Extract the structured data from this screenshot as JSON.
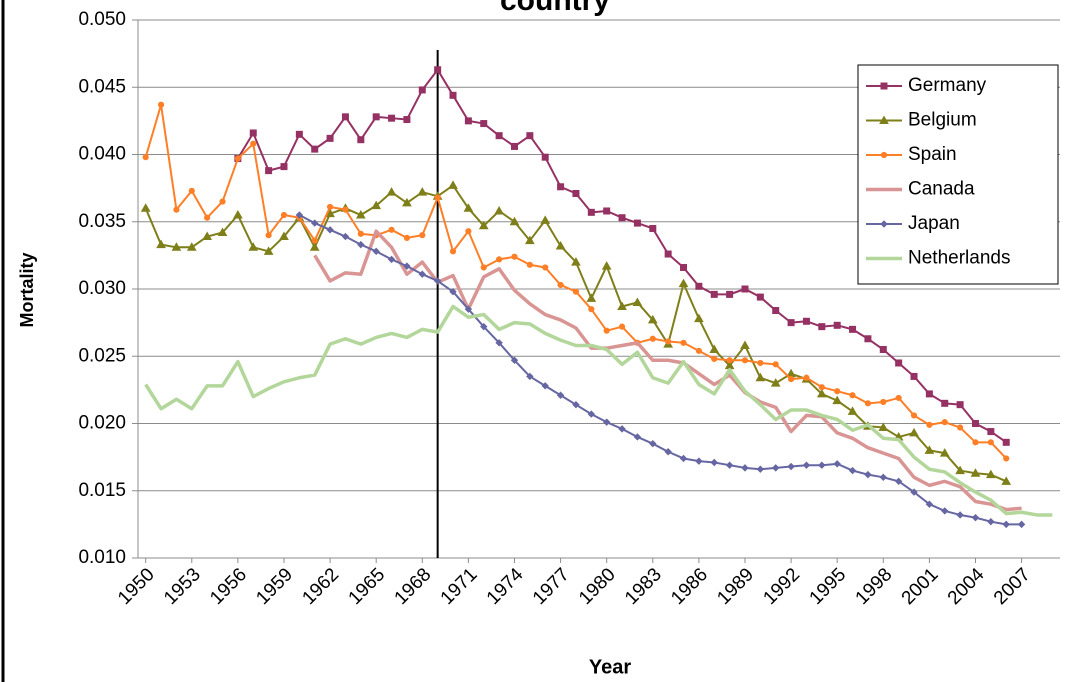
{
  "chart_data": {
    "type": "line",
    "title": "country",
    "x_label": "Year",
    "y_label": "Mortality",
    "x": [
      1950,
      1951,
      1952,
      1953,
      1954,
      1955,
      1956,
      1957,
      1958,
      1959,
      1960,
      1961,
      1962,
      1963,
      1964,
      1965,
      1966,
      1967,
      1968,
      1969,
      1970,
      1971,
      1972,
      1973,
      1974,
      1975,
      1976,
      1977,
      1978,
      1979,
      1980,
      1981,
      1982,
      1983,
      1984,
      1985,
      1986,
      1987,
      1988,
      1989,
      1990,
      1991,
      1992,
      1993,
      1994,
      1995,
      1996,
      1997,
      1998,
      1999,
      2000,
      2001,
      2002,
      2003,
      2004,
      2005,
      2006,
      2007,
      2008,
      2009
    ],
    "xlim": [
      1949.5,
      2009.5
    ],
    "xticks": [
      1950,
      1953,
      1956,
      1959,
      1962,
      1965,
      1968,
      1971,
      1974,
      1977,
      1980,
      1983,
      1986,
      1989,
      1992,
      1995,
      1998,
      2001,
      2004,
      2007
    ],
    "ylim": [
      0.01,
      0.05
    ],
    "yticks": [
      {
        "value": 0.01,
        "label": "0.010"
      },
      {
        "value": 0.015,
        "label": "0.015"
      },
      {
        "value": 0.02,
        "label": "0.020"
      },
      {
        "value": 0.025,
        "label": "0.025"
      },
      {
        "value": 0.03,
        "label": "0.030"
      },
      {
        "value": 0.035,
        "label": "0.035"
      },
      {
        "value": 0.04,
        "label": "0.040"
      },
      {
        "value": 0.045,
        "label": "0.045"
      },
      {
        "value": 0.05,
        "label": "0.050"
      }
    ],
    "grid": true,
    "vline": 1969,
    "legend": "upper right",
    "series": [
      {
        "name": "Germany",
        "color": "#953163",
        "marker": "square",
        "values": [
          null,
          null,
          null,
          null,
          null,
          null,
          0.0397,
          0.0416,
          0.0388,
          0.0391,
          0.0415,
          0.0404,
          0.0412,
          0.0428,
          0.0411,
          0.0428,
          0.0427,
          0.0426,
          0.0448,
          0.0463,
          0.0444,
          0.0425,
          0.0423,
          0.0414,
          0.0406,
          0.0414,
          0.0398,
          0.0376,
          0.0371,
          0.0357,
          0.0358,
          0.0353,
          0.0349,
          0.0345,
          0.0326,
          0.0316,
          0.0302,
          0.0296,
          0.0296,
          0.03,
          0.0294,
          0.0284,
          0.0275,
          0.0276,
          0.0272,
          0.0273,
          0.027,
          0.0263,
          0.0255,
          0.0245,
          0.0235,
          0.0222,
          0.0215,
          0.0214,
          0.02,
          0.0194,
          0.0186,
          null,
          null,
          null
        ]
      },
      {
        "name": "Belgium",
        "color": "#7f7f1a",
        "marker": "triangle",
        "values": [
          0.036,
          0.0333,
          0.0331,
          0.0331,
          0.0339,
          0.0342,
          0.0355,
          0.0331,
          0.0328,
          0.0339,
          0.0353,
          0.0331,
          0.0356,
          0.036,
          0.0355,
          0.0362,
          0.0372,
          0.0364,
          0.0372,
          0.0369,
          0.0377,
          0.036,
          0.0347,
          0.0358,
          0.035,
          0.0336,
          0.0351,
          0.0332,
          0.032,
          0.0293,
          0.0317,
          0.0287,
          0.029,
          0.0277,
          0.0259,
          0.0304,
          0.0278,
          0.0255,
          0.0243,
          0.0258,
          0.0234,
          0.023,
          0.0237,
          0.0233,
          0.0222,
          0.0217,
          0.0209,
          0.0198,
          0.0197,
          0.019,
          0.0193,
          0.018,
          0.0178,
          0.0165,
          0.0163,
          0.0162,
          0.0157,
          null,
          null,
          null
        ]
      },
      {
        "name": "Spain",
        "color": "#ff7f27",
        "marker": "circle",
        "values": [
          0.0398,
          0.0437,
          0.0359,
          0.0373,
          0.0353,
          0.0365,
          0.0397,
          0.0408,
          0.034,
          0.0355,
          0.0353,
          0.0336,
          0.0361,
          0.0359,
          0.0341,
          0.034,
          0.0344,
          0.0338,
          0.034,
          0.0368,
          0.0328,
          0.0343,
          0.0316,
          0.0322,
          0.0324,
          0.0318,
          0.0316,
          0.0303,
          0.0298,
          0.0285,
          0.0269,
          0.0272,
          0.026,
          0.0263,
          0.0261,
          0.026,
          0.0254,
          0.0248,
          0.0247,
          0.0247,
          0.0245,
          0.0244,
          0.0233,
          0.0234,
          0.0227,
          0.0224,
          0.0221,
          0.0215,
          0.0216,
          0.0219,
          0.0206,
          0.0199,
          0.0201,
          0.0197,
          0.0186,
          0.0186,
          0.0174,
          null,
          null,
          null
        ]
      },
      {
        "name": "Canada",
        "color": "#d99594",
        "marker": "none",
        "values": [
          null,
          null,
          null,
          null,
          null,
          null,
          null,
          null,
          null,
          null,
          null,
          0.0325,
          0.0306,
          0.0312,
          0.0311,
          0.0343,
          0.0331,
          0.0311,
          0.032,
          0.0305,
          0.031,
          0.0285,
          0.0309,
          0.0315,
          0.0299,
          0.0289,
          0.0281,
          0.0277,
          0.0271,
          0.0256,
          0.0256,
          0.0258,
          0.026,
          0.0247,
          0.0247,
          0.0245,
          0.0237,
          0.0229,
          0.0236,
          0.0223,
          0.0216,
          0.0212,
          0.0194,
          0.0206,
          0.0205,
          0.0193,
          0.0189,
          0.0182,
          0.0178,
          0.0174,
          0.016,
          0.0154,
          0.0157,
          0.0153,
          0.0142,
          0.014,
          0.0136,
          0.0137,
          null,
          null
        ]
      },
      {
        "name": "Japan",
        "color": "#6666a3",
        "marker": "diamond",
        "values": [
          null,
          null,
          null,
          null,
          null,
          null,
          null,
          null,
          null,
          null,
          0.0355,
          0.0349,
          0.0344,
          0.0339,
          0.0333,
          0.0328,
          0.0322,
          0.0317,
          0.0311,
          0.0306,
          0.0298,
          0.0285,
          0.0272,
          0.026,
          0.0247,
          0.0235,
          0.0228,
          0.0221,
          0.0214,
          0.0207,
          0.0201,
          0.0196,
          0.019,
          0.0185,
          0.0179,
          0.0174,
          0.0172,
          0.0171,
          0.0169,
          0.0167,
          0.0166,
          0.0167,
          0.0168,
          0.0169,
          0.0169,
          0.017,
          0.0165,
          0.0162,
          0.016,
          0.0157,
          0.0149,
          0.014,
          0.0135,
          0.0132,
          0.013,
          0.0127,
          0.0125,
          0.0125,
          null,
          null
        ]
      },
      {
        "name": "Netherlands",
        "color": "#b3d69b",
        "marker": "none",
        "values": [
          0.0229,
          0.0211,
          0.0218,
          0.0211,
          0.0228,
          0.0228,
          0.0246,
          0.022,
          0.0226,
          0.0231,
          0.0234,
          0.0236,
          0.0259,
          0.0263,
          0.0259,
          0.0264,
          0.0267,
          0.0264,
          0.027,
          0.0268,
          0.0287,
          0.0279,
          0.0281,
          0.027,
          0.0275,
          0.0274,
          0.0267,
          0.0262,
          0.0258,
          0.0258,
          0.0255,
          0.0244,
          0.0253,
          0.0234,
          0.023,
          0.0246,
          0.0229,
          0.0222,
          0.024,
          0.0224,
          0.0214,
          0.0203,
          0.021,
          0.021,
          0.0206,
          0.0203,
          0.0195,
          0.0199,
          0.0189,
          0.0188,
          0.0175,
          0.0166,
          0.0164,
          0.0156,
          0.0149,
          0.0143,
          0.0133,
          0.0134,
          0.0132,
          0.0132
        ]
      }
    ]
  }
}
